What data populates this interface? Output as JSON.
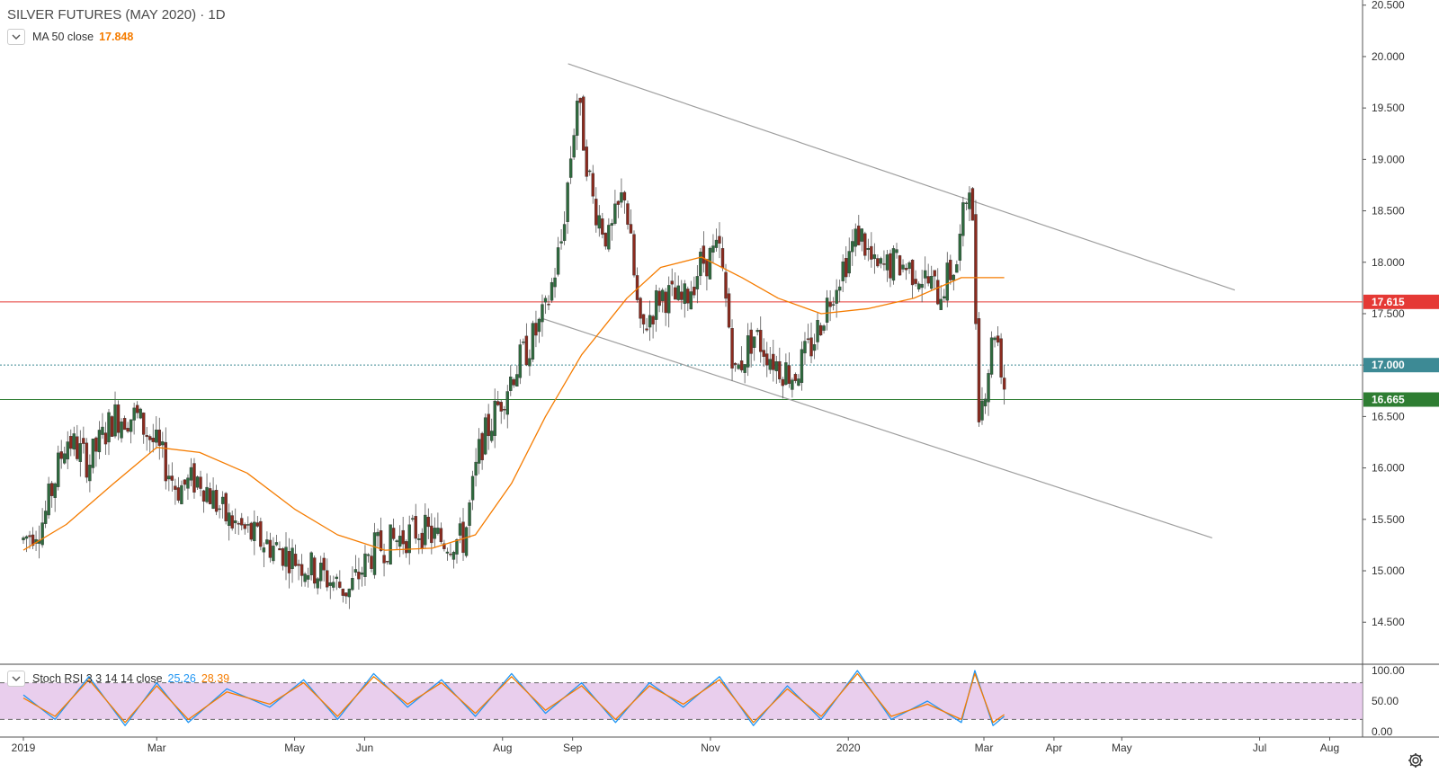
{
  "title": "SILVER FUTURES (MAY 2020) · 1D",
  "ma": {
    "label": "MA 50 close",
    "value": "17.848",
    "color": "#f57c00"
  },
  "stoch": {
    "label": "Stoch RSI 3 3 14 14 close",
    "k": "25.26",
    "d": "28.39",
    "k_color": "#2196f3",
    "d_color": "#f57c00"
  },
  "price_ticks": [
    "20.500",
    "20.000",
    "19.500",
    "19.000",
    "18.500",
    "18.000",
    "17.500",
    "17.000",
    "16.500",
    "16.000",
    "15.500",
    "15.000",
    "14.500"
  ],
  "stoch_ticks": [
    "100.00",
    "50.00",
    "0.00"
  ],
  "time_ticks": [
    "2019",
    "Mar",
    "May",
    "Jun",
    "Aug",
    "Sep",
    "Nov",
    "2020",
    "Mar",
    "Apr",
    "May",
    "Jul",
    "Aug"
  ],
  "price_labels": [
    {
      "text": "17.615",
      "price": 17.615,
      "color": "#e53935"
    },
    {
      "text": "17.000",
      "price": 17.0,
      "color": "#3d8a95"
    },
    {
      "text": "16.665",
      "price": 16.665,
      "color": "#2e7d32"
    }
  ],
  "chart_data": {
    "type": "candlestick",
    "y_range": [
      14.1,
      20.55
    ],
    "horizontal_lines": [
      {
        "price": 17.615,
        "color": "#e53935"
      },
      {
        "price": 17.0,
        "color": "#3d8a95",
        "style": "dotted"
      },
      {
        "price": 16.665,
        "color": "#2e7d32"
      }
    ],
    "trend_lines": [
      {
        "from": [
          "2019-08-30",
          19.93
        ],
        "to": [
          "2020-06-20",
          17.73
        ]
      },
      {
        "from": [
          "2019-08-19",
          17.45
        ],
        "to": [
          "2020-06-10",
          15.32
        ]
      }
    ],
    "price_path": [
      [
        "2019-01-01",
        15.3
      ],
      [
        "2019-01-10",
        15.5
      ],
      [
        "2019-01-20",
        16.3
      ],
      [
        "2019-01-30",
        16.05
      ],
      [
        "2019-02-10",
        16.5
      ],
      [
        "2019-02-20",
        16.5
      ],
      [
        "2019-03-01",
        16.2
      ],
      [
        "2019-03-10",
        15.8
      ],
      [
        "2019-03-20",
        15.9
      ],
      [
        "2019-04-01",
        15.5
      ],
      [
        "2019-04-15",
        15.3
      ],
      [
        "2019-04-25",
        15.2
      ],
      [
        "2019-05-10",
        15.0
      ],
      [
        "2019-05-25",
        14.8
      ],
      [
        "2019-06-05",
        15.2
      ],
      [
        "2019-06-15",
        15.3
      ],
      [
        "2019-06-25",
        15.4
      ],
      [
        "2019-07-05",
        15.3
      ],
      [
        "2019-07-15",
        15.3
      ],
      [
        "2019-07-22",
        16.2
      ],
      [
        "2019-07-30",
        16.6
      ],
      [
        "2019-08-05",
        16.9
      ],
      [
        "2019-08-13",
        17.2
      ],
      [
        "2019-08-20",
        17.5
      ],
      [
        "2019-08-27",
        18.2
      ],
      [
        "2019-09-03",
        19.6
      ],
      [
        "2019-09-10",
        18.6
      ],
      [
        "2019-09-17",
        18.2
      ],
      [
        "2019-09-24",
        18.7
      ],
      [
        "2019-10-01",
        17.3
      ],
      [
        "2019-10-10",
        17.7
      ],
      [
        "2019-10-20",
        17.6
      ],
      [
        "2019-10-28",
        18.0
      ],
      [
        "2019-11-05",
        18.1
      ],
      [
        "2019-11-12",
        16.9
      ],
      [
        "2019-11-20",
        17.3
      ],
      [
        "2019-12-01",
        17.0
      ],
      [
        "2019-12-08",
        16.9
      ],
      [
        "2019-12-16",
        17.2
      ],
      [
        "2019-12-26",
        17.8
      ],
      [
        "2020-01-06",
        18.3
      ],
      [
        "2020-01-13",
        17.9
      ],
      [
        "2020-01-22",
        18.0
      ],
      [
        "2020-02-01",
        17.9
      ],
      [
        "2020-02-10",
        17.7
      ],
      [
        "2020-02-18",
        18.0
      ],
      [
        "2020-02-24",
        18.9
      ],
      [
        "2020-02-28",
        16.5
      ],
      [
        "2020-03-03",
        17.0
      ],
      [
        "2020-03-06",
        17.4
      ],
      [
        "2020-03-10",
        16.8
      ]
    ],
    "ma50_path": [
      [
        "2019-01-01",
        15.2
      ],
      [
        "2019-01-20",
        15.45
      ],
      [
        "2019-02-10",
        15.85
      ],
      [
        "2019-03-01",
        16.2
      ],
      [
        "2019-03-20",
        16.15
      ],
      [
        "2019-04-10",
        15.95
      ],
      [
        "2019-05-01",
        15.6
      ],
      [
        "2019-05-20",
        15.35
      ],
      [
        "2019-06-10",
        15.2
      ],
      [
        "2019-07-01",
        15.22
      ],
      [
        "2019-07-20",
        15.35
      ],
      [
        "2019-08-05",
        15.85
      ],
      [
        "2019-08-20",
        16.5
      ],
      [
        "2019-09-05",
        17.1
      ],
      [
        "2019-09-25",
        17.65
      ],
      [
        "2019-10-10",
        17.95
      ],
      [
        "2019-10-28",
        18.05
      ],
      [
        "2019-11-15",
        17.85
      ],
      [
        "2019-12-01",
        17.65
      ],
      [
        "2019-12-20",
        17.5
      ],
      [
        "2020-01-10",
        17.55
      ],
      [
        "2020-01-30",
        17.65
      ],
      [
        "2020-02-20",
        17.85
      ],
      [
        "2020-03-10",
        17.85
      ]
    ],
    "stoch_k_path": [
      [
        "2019-01-01",
        60
      ],
      [
        "2019-01-15",
        20
      ],
      [
        "2019-01-30",
        90
      ],
      [
        "2019-02-15",
        10
      ],
      [
        "2019-03-01",
        80
      ],
      [
        "2019-03-15",
        15
      ],
      [
        "2019-04-01",
        70
      ],
      [
        "2019-04-20",
        40
      ],
      [
        "2019-05-05",
        85
      ],
      [
        "2019-05-20",
        20
      ],
      [
        "2019-06-05",
        95
      ],
      [
        "2019-06-20",
        40
      ],
      [
        "2019-07-05",
        85
      ],
      [
        "2019-07-20",
        25
      ],
      [
        "2019-08-05",
        95
      ],
      [
        "2019-08-20",
        30
      ],
      [
        "2019-09-05",
        80
      ],
      [
        "2019-09-20",
        15
      ],
      [
        "2019-10-05",
        80
      ],
      [
        "2019-10-20",
        40
      ],
      [
        "2019-11-05",
        90
      ],
      [
        "2019-11-20",
        10
      ],
      [
        "2019-12-05",
        75
      ],
      [
        "2019-12-20",
        20
      ],
      [
        "2020-01-05",
        100
      ],
      [
        "2020-01-20",
        20
      ],
      [
        "2020-02-05",
        50
      ],
      [
        "2020-02-20",
        15
      ],
      [
        "2020-02-26",
        100
      ],
      [
        "2020-03-05",
        10
      ],
      [
        "2020-03-10",
        25
      ]
    ],
    "stoch_d_path": [
      [
        "2019-01-01",
        55
      ],
      [
        "2019-01-15",
        25
      ],
      [
        "2019-01-30",
        85
      ],
      [
        "2019-02-15",
        15
      ],
      [
        "2019-03-01",
        75
      ],
      [
        "2019-03-15",
        20
      ],
      [
        "2019-04-01",
        65
      ],
      [
        "2019-04-20",
        45
      ],
      [
        "2019-05-05",
        80
      ],
      [
        "2019-05-20",
        25
      ],
      [
        "2019-06-05",
        90
      ],
      [
        "2019-06-20",
        45
      ],
      [
        "2019-07-05",
        80
      ],
      [
        "2019-07-20",
        30
      ],
      [
        "2019-08-05",
        90
      ],
      [
        "2019-08-20",
        35
      ],
      [
        "2019-09-05",
        75
      ],
      [
        "2019-09-20",
        20
      ],
      [
        "2019-10-05",
        75
      ],
      [
        "2019-10-20",
        45
      ],
      [
        "2019-11-05",
        85
      ],
      [
        "2019-11-20",
        15
      ],
      [
        "2019-12-05",
        70
      ],
      [
        "2019-12-20",
        25
      ],
      [
        "2020-01-05",
        95
      ],
      [
        "2020-01-20",
        25
      ],
      [
        "2020-02-05",
        45
      ],
      [
        "2020-02-20",
        20
      ],
      [
        "2020-02-26",
        95
      ],
      [
        "2020-03-05",
        15
      ],
      [
        "2020-03-10",
        28
      ]
    ],
    "stoch_band": [
      20,
      80
    ]
  }
}
